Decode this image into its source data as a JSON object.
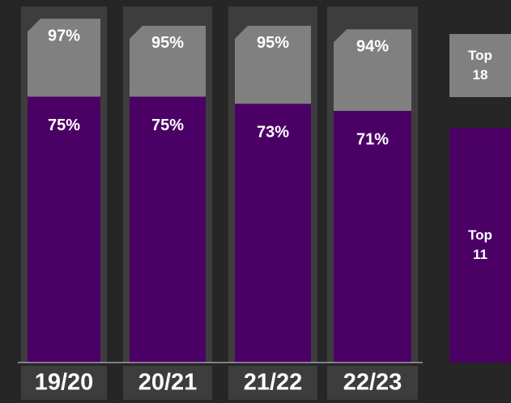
{
  "chart_data": {
    "type": "bar",
    "categories": [
      "19/20",
      "20/21",
      "21/22",
      "22/23"
    ],
    "series": [
      {
        "name": "Top 18",
        "color": "#808080",
        "values": [
          97,
          95,
          95,
          94
        ],
        "value_labels": [
          "97%",
          "95%",
          "95%",
          "94%"
        ]
      },
      {
        "name": "Top 11",
        "color": "#4b0066",
        "values": [
          75,
          75,
          73,
          71
        ],
        "value_labels": [
          "75%",
          "75%",
          "73%",
          "71%"
        ]
      }
    ],
    "ylim": [
      0,
      100
    ]
  }
}
